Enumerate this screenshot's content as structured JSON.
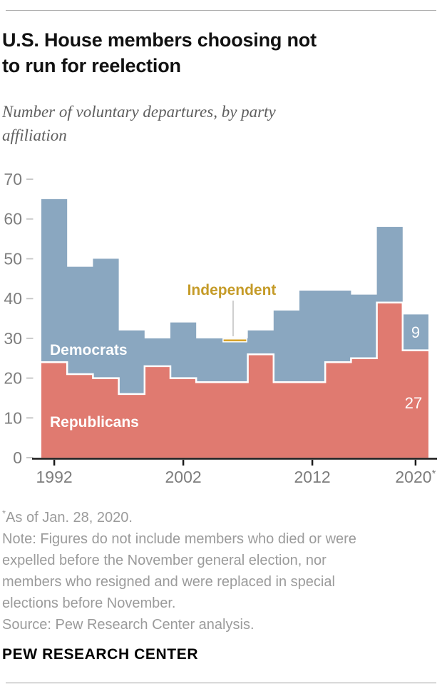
{
  "header": {
    "title_line1": "U.S. House members choosing not",
    "title_line2": "to run for reelection",
    "subtitle_line1": "Number of voluntary departures, by party",
    "subtitle_line2": "affiliation"
  },
  "chart_data": {
    "type": "area",
    "stacked": true,
    "title": "U.S. House members choosing not to run for reelection",
    "subtitle": "Number of voluntary departures, by party affiliation",
    "x": [
      1992,
      1994,
      1996,
      1998,
      2000,
      2002,
      2004,
      2006,
      2008,
      2010,
      2012,
      2014,
      2016,
      2018,
      2020
    ],
    "series": [
      {
        "name": "Republicans",
        "color": "#e07a70",
        "values": [
          24,
          21,
          20,
          16,
          23,
          20,
          19,
          19,
          26,
          19,
          19,
          24,
          25,
          39,
          27
        ]
      },
      {
        "name": "Democrats",
        "color": "#8aa7c0",
        "values": [
          41,
          27,
          30,
          16,
          7,
          14,
          11,
          10,
          6,
          18,
          23,
          18,
          16,
          19,
          9
        ]
      },
      {
        "name": "Independent",
        "color": "#d7a32b",
        "values": [
          0,
          0,
          0,
          0,
          0,
          0,
          0,
          1,
          0,
          0,
          0,
          0,
          0,
          0,
          0
        ]
      }
    ],
    "totals": [
      65,
      48,
      50,
      32,
      30,
      34,
      30,
      30,
      32,
      37,
      42,
      42,
      41,
      58,
      36
    ],
    "ylim": [
      0,
      70
    ],
    "y_ticks": [
      0,
      10,
      20,
      30,
      40,
      50,
      60,
      70
    ],
    "x_tick_years": [
      1992,
      2002,
      2012,
      2020
    ],
    "x_tick_labels": [
      "1992",
      "2002",
      "2012",
      "2020*"
    ],
    "grid": false,
    "legend": "inline-labels",
    "labels": {
      "democrats": "Democrats",
      "republicans": "Republicans",
      "independent": "Independent",
      "value_2020_democrats": "9",
      "value_2020_republicans": "27"
    },
    "colors": {
      "axis": "#1a1a1a",
      "tick_label": "#7d7d7d",
      "y_dash": "#c8c8c8",
      "callout_line": "#cfcfcf",
      "area_label": "#ffffff",
      "independent_label": "#c59b28"
    }
  },
  "footnotes": {
    "asterisk_mark": "*",
    "asterisk_text": "As of Jan. 28, 2020.",
    "note": "Note: Figures do not include members who died or were expelled before the November general election, nor members who resigned and were replaced in special elections before November.",
    "source": "Source: Pew Research Center analysis."
  },
  "footer": {
    "brand": "PEW RESEARCH CENTER"
  }
}
